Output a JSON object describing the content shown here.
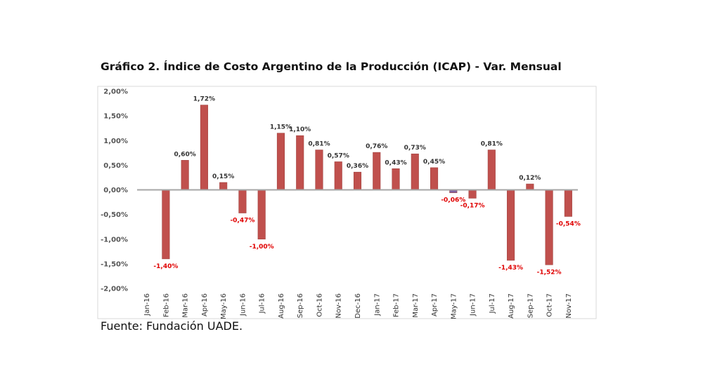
{
  "title": "Gráfico 2. Índice de Costo Argentino de la Producción (ICAP) - Var. Mensual",
  "source": "Fuente: Fundación UADE.",
  "colors": {
    "bar": "#C0504D",
    "bar_small_negative": "#8064A2",
    "positive_label": "#333333",
    "negative_label": "#E00000",
    "axis": "#A6A6A6",
    "grid": "#E6E6E6"
  },
  "chart_data": {
    "type": "bar",
    "title": "Gráfico 2. Índice de Costo Argentino de la Producción (ICAP) - Var. Mensual",
    "xlabel": "",
    "ylabel": "",
    "ylim": [
      -2.0,
      2.0
    ],
    "y_ticks": [
      "2,00%",
      "1,50%",
      "1,00%",
      "0,50%",
      "0,00%",
      "-0,50%",
      "-1,00%",
      "-1,50%",
      "-2,00%"
    ],
    "grid": false,
    "categories": [
      "Jan-16",
      "Feb-16",
      "Mar-16",
      "Apr-16",
      "May-16",
      "Jun-16",
      "Jul-16",
      "Aug-16",
      "Sep-16",
      "Oct-16",
      "Nov-16",
      "Dec-16",
      "Jan-17",
      "Feb-17",
      "Mar-17",
      "Apr-17",
      "May-17",
      "Jun-17",
      "Jul-17",
      "Aug-17",
      "Sep-17",
      "Oct-17",
      "Nov-17"
    ],
    "values": [
      null,
      -1.4,
      0.6,
      1.72,
      0.15,
      -0.47,
      -1.0,
      1.15,
      1.1,
      0.81,
      0.57,
      0.36,
      0.76,
      0.43,
      0.73,
      0.45,
      -0.06,
      -0.17,
      0.81,
      -1.43,
      0.12,
      -1.52,
      -0.54
    ],
    "data_labels": [
      "",
      "-1,40%",
      "0,60%",
      "1,72%",
      "0,15%",
      "-0,47%",
      "-1,00%",
      "1,15%",
      "1,10%",
      "0,81%",
      "0,57%",
      "0,36%",
      "0,76%",
      "0,43%",
      "0,73%",
      "0,45%",
      "-0,06%",
      "-0,17%",
      "0,81%",
      "-1,43%",
      "0,12%",
      "-1,52%",
      "-0,54%"
    ]
  }
}
